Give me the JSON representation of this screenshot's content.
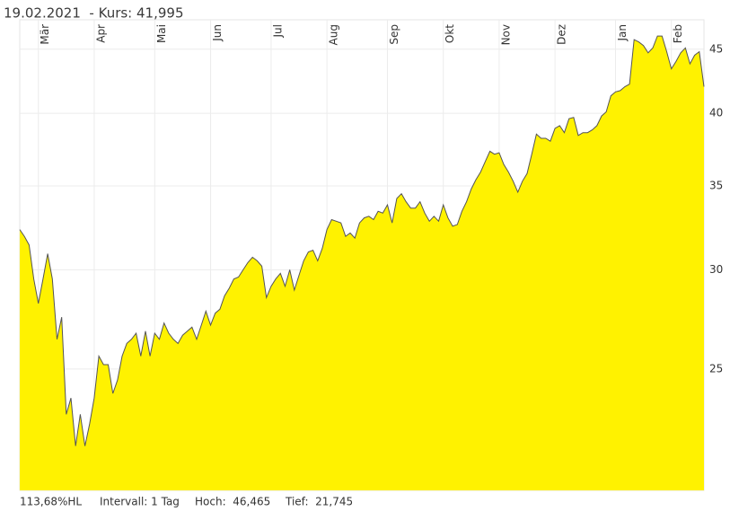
{
  "header": {
    "title": "19.02.2021  - Kurs: 41,995"
  },
  "chart_data": {
    "type": "area",
    "log": true,
    "color": "#fff200",
    "line_color": "#555555",
    "grid": true,
    "values": [
      32.3,
      31.9,
      31.4,
      29.5,
      28.2,
      29.5,
      30.9,
      29.5,
      26.4,
      27.5,
      23.0,
      23.7,
      21.7,
      23.0,
      21.7,
      22.6,
      23.7,
      25.6,
      25.2,
      25.2,
      23.9,
      24.5,
      25.6,
      26.2,
      26.4,
      26.7,
      25.6,
      26.8,
      25.6,
      26.7,
      26.4,
      27.2,
      26.7,
      26.4,
      26.2,
      26.6,
      26.8,
      27.0,
      26.4,
      27.1,
      27.8,
      27.1,
      27.7,
      27.9,
      28.6,
      29.0,
      29.5,
      29.6,
      30.0,
      30.4,
      30.7,
      30.5,
      30.2,
      28.5,
      29.1,
      29.5,
      29.8,
      29.1,
      30.0,
      28.9,
      29.7,
      30.5,
      31.0,
      31.1,
      30.5,
      31.2,
      32.3,
      32.9,
      32.8,
      32.7,
      31.9,
      32.1,
      31.8,
      32.7,
      33.0,
      33.1,
      32.9,
      33.4,
      33.3,
      33.8,
      32.7,
      34.2,
      34.5,
      34.0,
      33.6,
      33.6,
      34.0,
      33.3,
      32.8,
      33.1,
      32.8,
      33.8,
      33.0,
      32.5,
      32.6,
      33.4,
      34.0,
      34.8,
      35.4,
      35.9,
      36.6,
      37.3,
      37.1,
      37.2,
      36.4,
      35.9,
      35.3,
      34.6,
      35.3,
      35.8,
      37.1,
      38.5,
      38.2,
      38.2,
      38.0,
      38.9,
      39.1,
      38.6,
      39.6,
      39.7,
      38.4,
      38.6,
      38.6,
      38.8,
      39.1,
      39.8,
      40.1,
      41.3,
      41.6,
      41.7,
      42.0,
      42.2,
      45.8,
      45.6,
      45.3,
      44.7,
      45.1,
      46.1,
      46.1,
      44.8,
      43.4,
      44.0,
      44.7,
      45.1,
      43.8,
      44.5,
      44.8,
      42.0
    ],
    "xlim": [
      0,
      147
    ],
    "xticks": [
      {
        "value": 4,
        "label": "Mär"
      },
      {
        "value": 16,
        "label": "Apr"
      },
      {
        "value": 29,
        "label": "Mai"
      },
      {
        "value": 41,
        "label": "Jun"
      },
      {
        "value": 54,
        "label": "Jul"
      },
      {
        "value": 66,
        "label": "Aug"
      },
      {
        "value": 79,
        "label": "Sep"
      },
      {
        "value": 91,
        "label": "Okt"
      },
      {
        "value": 103,
        "label": "Nov"
      },
      {
        "value": 115,
        "label": "Dez"
      },
      {
        "value": 128,
        "label": "Jan"
      },
      {
        "value": 140,
        "label": "Feb"
      }
    ],
    "ylim": [
      20,
      47.5
    ],
    "yticks": [
      25,
      30,
      35,
      40,
      45
    ]
  },
  "footer": {
    "items": [
      "113,68%HL",
      "Intervall: 1 Tag",
      "Hoch:  46,465",
      "Tief:  21,745"
    ]
  }
}
